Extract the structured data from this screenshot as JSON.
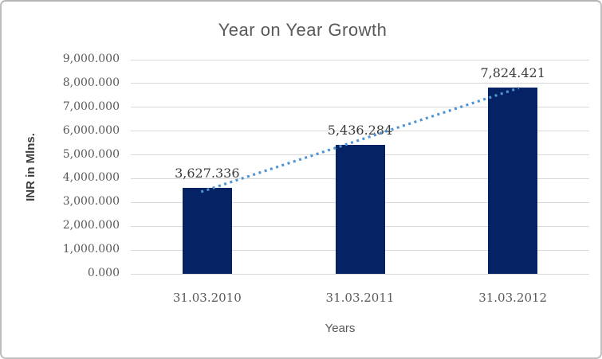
{
  "chart_data": {
    "type": "bar",
    "title": "Year on Year Growth",
    "xlabel": "Years",
    "ylabel": "INR in Mlns.",
    "categories": [
      "31.03.2010",
      "31.03.2011",
      "31.03.2012"
    ],
    "values": [
      3627.336,
      5436.284,
      7824.421
    ],
    "value_labels": [
      "3,627.336",
      "5,436.284",
      "7,824.421"
    ],
    "ylim": [
      0,
      9000
    ],
    "ytick_labels": [
      "0.000",
      "1,000.000",
      "2,000.000",
      "3,000.000",
      "4,000.000",
      "5,000.000",
      "6,000.000",
      "7,000.000",
      "8,000.000",
      "9,000.000"
    ],
    "grid": "horizontal",
    "legend": "none",
    "trendline": {
      "type": "linear",
      "style": "dotted"
    },
    "colors": {
      "bar": "#052364",
      "trendline": "#4f94d4",
      "gridline": "#d9d9d9",
      "title": "#595959",
      "ticks": "#595959",
      "value_labels": "#3b3b3b",
      "y_axis_title": "#3f3f3f",
      "frame_border": "#c2c2c2"
    }
  }
}
